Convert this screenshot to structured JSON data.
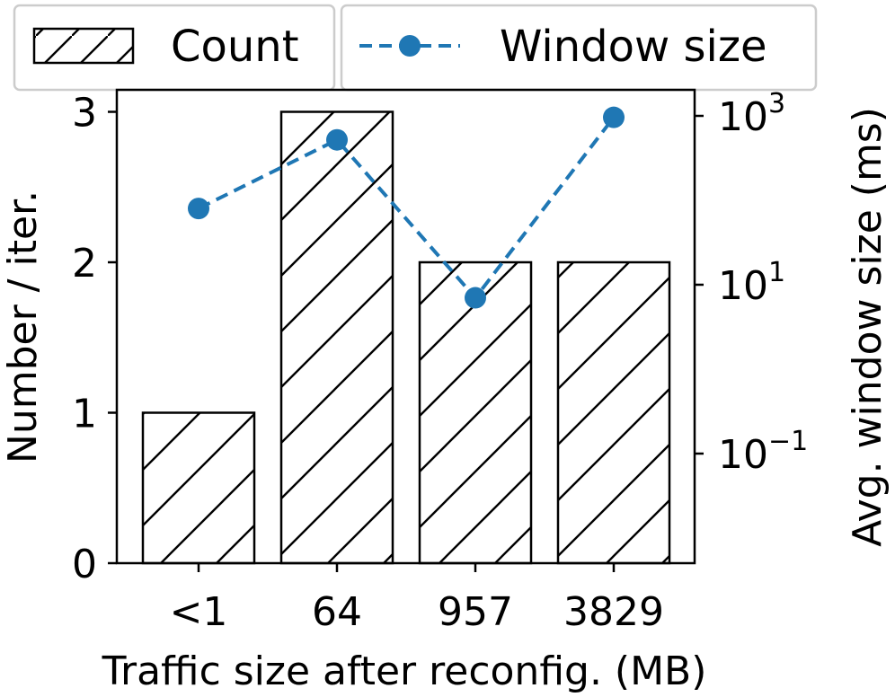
{
  "chart_data": {
    "type": "bar",
    "categories": [
      "<1",
      "64",
      "957",
      "3829"
    ],
    "xlabel": "Traffic size after reconfig. (MB)",
    "ylabel": "Number / iter.",
    "ylabel_right": "Avg. window size (ms)",
    "ylim": [
      0,
      3.2
    ],
    "y_ticks": [
      0,
      1,
      2,
      3
    ],
    "y2_scale": "log",
    "y2_ticks": [
      {
        "value": 0.1,
        "base": "10",
        "exp": "−1"
      },
      {
        "value": 10,
        "base": "10",
        "exp": "1"
      },
      {
        "value": 1000,
        "base": "10",
        "exp": "3"
      }
    ],
    "series": [
      {
        "name": "Count",
        "kind": "bar",
        "hatch": "/",
        "values": [
          1,
          3,
          2,
          2
        ]
      },
      {
        "name": "Window size",
        "kind": "line",
        "axis": "right",
        "style": "dashed",
        "marker": "circle",
        "color": "#1f77b4",
        "values": [
          80,
          520,
          7,
          960
        ]
      }
    ],
    "legend": "top, above plot"
  }
}
